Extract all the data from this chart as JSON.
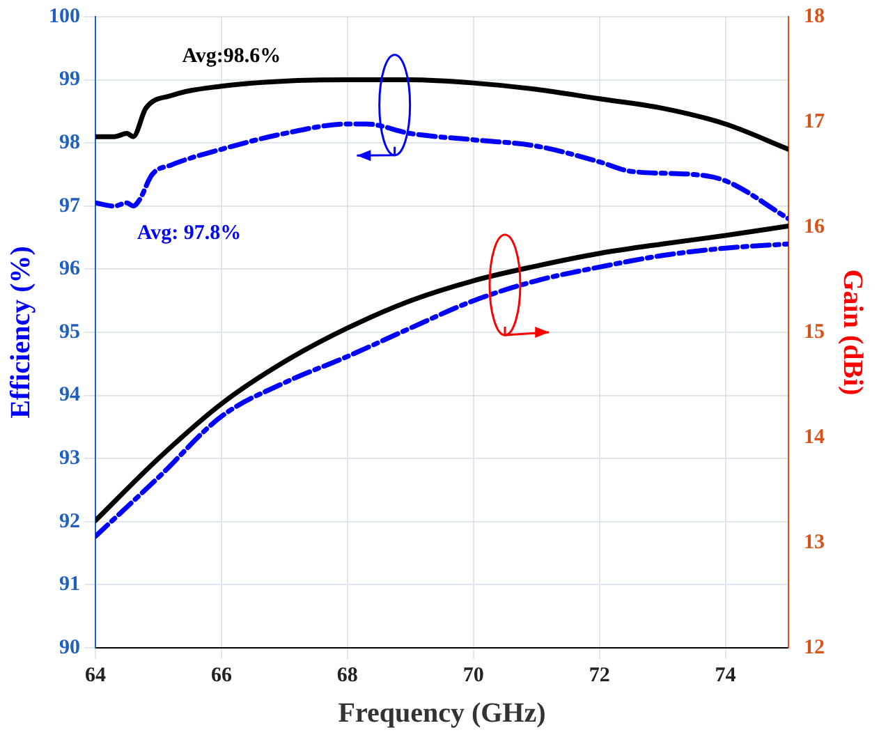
{
  "chart_data": {
    "type": "line",
    "xlabel": "Frequency (GHz)",
    "ylabel": "Efficiency (%)",
    "y2label": "Gain (dBi)",
    "xlim": [
      64,
      75
    ],
    "xticks": [
      64,
      66,
      68,
      70,
      72,
      74
    ],
    "ylim": [
      90,
      100
    ],
    "yticks": [
      90,
      91,
      92,
      93,
      94,
      95,
      96,
      97,
      98,
      99,
      100
    ],
    "y2lim": [
      12,
      18
    ],
    "y2ticks": [
      12,
      13,
      14,
      15,
      16,
      17,
      18
    ],
    "grid": true,
    "legend": false,
    "marker": "none",
    "series": [
      {
        "color": "#000000",
        "line_style": "solid",
        "x": [
          64,
          64.3,
          64.5,
          64.6,
          64.8,
          65.2,
          66,
          67,
          68,
          69,
          70,
          71,
          72,
          73,
          74,
          75
        ],
        "values": [
          98.1,
          98.1,
          98.15,
          98.1,
          98.55,
          98.75,
          98.9,
          98.98,
          99.0,
          99.0,
          98.95,
          98.85,
          98.7,
          98.55,
          98.3,
          97.9
        ]
      },
      {
        "color": "#0000ff",
        "line_style": "dashed",
        "x": [
          64,
          64.3,
          64.5,
          64.6,
          64.7,
          64.9,
          65.2,
          66,
          67,
          68,
          68.3,
          69,
          70,
          71,
          72,
          72.5,
          73.5,
          74,
          75
        ],
        "values": [
          97.05,
          97.0,
          97.05,
          97.0,
          97.1,
          97.5,
          97.65,
          97.9,
          98.15,
          98.3,
          98.3,
          98.15,
          98.05,
          97.95,
          97.7,
          97.55,
          97.5,
          97.4,
          96.8
        ]
      },
      {
        "color": "#000000",
        "line_style": "solid",
        "axis": "y2",
        "x": [
          64,
          65,
          66,
          67,
          68,
          69,
          70,
          71,
          72,
          73,
          74,
          75
        ],
        "values": [
          13.21,
          13.8,
          14.32,
          14.72,
          15.04,
          15.3,
          15.49,
          15.63,
          15.75,
          15.84,
          15.92,
          16.01
        ]
      },
      {
        "color": "#0000ff",
        "line_style": "dashed",
        "axis": "y2",
        "x": [
          64,
          65,
          66,
          67,
          68,
          69,
          70,
          71,
          72,
          73,
          74,
          75
        ],
        "values": [
          13.06,
          13.62,
          14.2,
          14.52,
          14.77,
          15.04,
          15.3,
          15.49,
          15.62,
          15.73,
          15.8,
          15.84
        ]
      }
    ],
    "annotations": [
      "Avg:98.6%",
      "Avg: 97.8%"
    ]
  }
}
